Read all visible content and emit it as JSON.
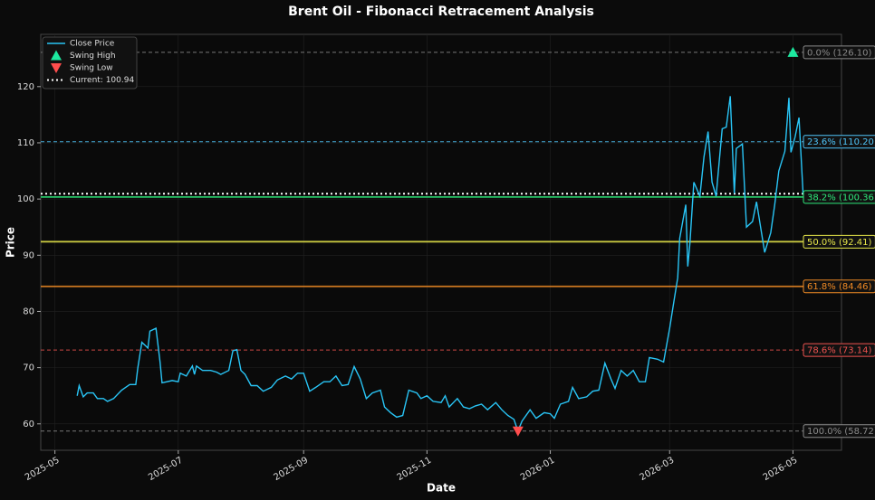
{
  "chart_data": {
    "type": "line",
    "title": "Brent Oil - Fibonacci Retracement Analysis",
    "x_label": "Date",
    "y_label": "Price",
    "xlim": [
      "2025-04-24",
      "2026-05-25"
    ],
    "ylim": [
      55.3,
      129.3
    ],
    "xticks": [
      {
        "value": "2025-05-01",
        "label": "2025-05"
      },
      {
        "value": "2025-07-01",
        "label": "2025-07"
      },
      {
        "value": "2025-09-01",
        "label": "2025-09"
      },
      {
        "value": "2025-11-01",
        "label": "2025-11"
      },
      {
        "value": "2026-01-01",
        "label": "2026-01"
      },
      {
        "value": "2026-03-01",
        "label": "2026-03"
      },
      {
        "value": "2026-05-01",
        "label": "2026-05"
      }
    ],
    "yticks": [
      60,
      70,
      80,
      90,
      100,
      110,
      120
    ],
    "grid": true,
    "legend": "upper left",
    "x": [
      "2025-05-12",
      "2025-05-13",
      "2025-05-15",
      "2025-05-17",
      "2025-05-20",
      "2025-05-22",
      "2025-05-25",
      "2025-05-27",
      "2025-05-30",
      "2025-06-03",
      "2025-06-07",
      "2025-06-10",
      "2025-06-11",
      "2025-06-13",
      "2025-06-16",
      "2025-06-17",
      "2025-06-20",
      "2025-06-22",
      "2025-06-23",
      "2025-06-28",
      "2025-07-01",
      "2025-07-02",
      "2025-07-05",
      "2025-07-08",
      "2025-07-09",
      "2025-07-10",
      "2025-07-13",
      "2025-07-17",
      "2025-07-20",
      "2025-07-22",
      "2025-07-26",
      "2025-07-28",
      "2025-07-30",
      "2025-08-01",
      "2025-08-03",
      "2025-08-06",
      "2025-08-09",
      "2025-08-12",
      "2025-08-16",
      "2025-08-19",
      "2025-08-23",
      "2025-08-26",
      "2025-08-29",
      "2025-09-01",
      "2025-09-04",
      "2025-09-07",
      "2025-09-11",
      "2025-09-14",
      "2025-09-17",
      "2025-09-20",
      "2025-09-23",
      "2025-09-26",
      "2025-09-29",
      "2025-10-02",
      "2025-10-05",
      "2025-10-09",
      "2025-10-11",
      "2025-10-14",
      "2025-10-17",
      "2025-10-20",
      "2025-10-23",
      "2025-10-27",
      "2025-10-29",
      "2025-11-01",
      "2025-11-04",
      "2025-11-08",
      "2025-11-10",
      "2025-11-12",
      "2025-11-16",
      "2025-11-19",
      "2025-11-22",
      "2025-11-25",
      "2025-11-28",
      "2025-12-01",
      "2025-12-05",
      "2025-12-08",
      "2025-12-11",
      "2025-12-14",
      "2025-12-16",
      "2025-12-18",
      "2025-12-22",
      "2025-12-25",
      "2025-12-29",
      "2026-01-01",
      "2026-01-03",
      "2026-01-06",
      "2026-01-10",
      "2026-01-12",
      "2026-01-15",
      "2026-01-19",
      "2026-01-22",
      "2026-01-25",
      "2026-01-28",
      "2026-01-31",
      "2026-02-02",
      "2026-02-05",
      "2026-02-08",
      "2026-02-11",
      "2026-02-14",
      "2026-02-17",
      "2026-02-19",
      "2026-02-23",
      "2026-02-26",
      "2026-03-01",
      "2026-03-03",
      "2026-03-05",
      "2026-03-06",
      "2026-03-09",
      "2026-03-10",
      "2026-03-11",
      "2026-03-13",
      "2026-03-16",
      "2026-03-18",
      "2026-03-20",
      "2026-03-22",
      "2026-03-24",
      "2026-03-25",
      "2026-03-27",
      "2026-03-29",
      "2026-03-31",
      "2026-04-02",
      "2026-04-03",
      "2026-04-06",
      "2026-04-08",
      "2026-04-11",
      "2026-04-13",
      "2026-04-15",
      "2026-04-17",
      "2026-04-20",
      "2026-04-22",
      "2026-04-24",
      "2026-04-27",
      "2026-04-29",
      "2026-04-30",
      "2026-05-02",
      "2026-05-04",
      "2026-05-06"
    ],
    "series": [
      {
        "name": "Close Price",
        "color": "#29c5f6",
        "values": [
          65,
          66.8,
          64.8,
          65.5,
          65.5,
          64.5,
          64.5,
          64,
          64.5,
          66,
          67,
          67,
          70,
          74.5,
          73.5,
          76.5,
          77,
          71,
          67.3,
          67.7,
          67.5,
          69,
          68.5,
          70.3,
          68.8,
          70.3,
          69.5,
          69.5,
          69.2,
          68.8,
          69.5,
          73,
          73.2,
          69.5,
          68.8,
          66.8,
          66.8,
          65.8,
          66.5,
          67.8,
          68.5,
          68,
          69,
          69,
          65.8,
          66.5,
          67.5,
          67.5,
          68.5,
          66.8,
          67,
          70.2,
          68,
          64.5,
          65.5,
          66,
          63,
          62,
          61.2,
          61.5,
          66,
          65.5,
          64.5,
          65,
          64,
          63.8,
          65,
          63,
          64.5,
          63,
          62.7,
          63.2,
          63.5,
          62.5,
          63.8,
          62.5,
          61.5,
          60.8,
          58.72,
          60.5,
          62.5,
          61,
          62,
          61.8,
          61,
          63.5,
          64,
          66.5,
          64.5,
          64.8,
          65.8,
          66,
          70.8,
          68,
          66.3,
          69.5,
          68.5,
          69.5,
          67.5,
          67.5,
          71.8,
          71.5,
          71,
          77,
          81.5,
          86,
          93,
          99,
          88,
          92,
          103,
          100.5,
          107.5,
          112,
          103,
          100.5,
          104.5,
          112.5,
          112.8,
          118.3,
          101,
          109,
          109.8,
          95,
          96,
          99.5,
          95,
          90.5,
          94,
          99,
          105,
          108.5,
          118,
          108.3,
          111,
          114.5,
          100.94
        ]
      }
    ],
    "markers": [
      {
        "name": "Swing High",
        "x": "2026-05-01",
        "value": 126.1,
        "color": "#1de9a0",
        "shape": "up"
      },
      {
        "name": "Swing Low",
        "x": "2025-12-16",
        "value": 58.72,
        "color": "#ff4d4d",
        "shape": "down"
      }
    ],
    "current": {
      "value": 100.94,
      "label": "Current: 100.94",
      "color": "#ffffff"
    },
    "levels": [
      {
        "value": 126.1,
        "label": "0.0% (126.10)",
        "color": "#8a8a8a",
        "style": "dashed"
      },
      {
        "value": 110.2,
        "label": "23.6% (110.20)",
        "color": "#4fc3f7",
        "style": "dashed"
      },
      {
        "value": 100.36,
        "label": "38.2% (100.36)",
        "color": "#2ee87a",
        "style": "solid"
      },
      {
        "value": 92.41,
        "label": "50.0% (92.41)",
        "color": "#e8e84a",
        "style": "solid"
      },
      {
        "value": 84.46,
        "label": "61.8% (84.46)",
        "color": "#f08a24",
        "style": "solid"
      },
      {
        "value": 73.14,
        "label": "78.6% (73.14)",
        "color": "#ef5350",
        "style": "dashed"
      },
      {
        "value": 58.72,
        "label": "100.0% (58.72)",
        "color": "#8a8a8a",
        "style": "dashed"
      }
    ]
  }
}
